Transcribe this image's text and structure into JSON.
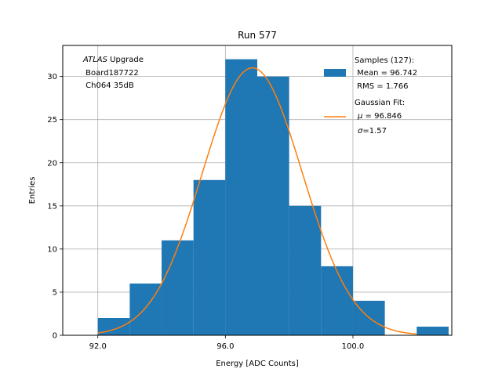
{
  "chart_data": {
    "type": "bar",
    "title": "Run 577",
    "xlabel": "Energy [ADC Counts]",
    "ylabel": "Entries",
    "xlim": [
      90.9,
      103.1
    ],
    "ylim": [
      0,
      33.6
    ],
    "grid": true,
    "xticks": [
      92.0,
      96.0,
      100.0
    ],
    "xtick_labels": [
      "92.0",
      "96.0",
      "100.0"
    ],
    "yticks": [
      0,
      5,
      10,
      15,
      20,
      25,
      30
    ],
    "ytick_labels": [
      "0",
      "5",
      "10",
      "15",
      "20",
      "25",
      "30"
    ],
    "bins": [
      {
        "x0": 92.0,
        "x1": 93.0,
        "count": 2
      },
      {
        "x0": 93.0,
        "x1": 94.0,
        "count": 6
      },
      {
        "x0": 94.0,
        "x1": 95.0,
        "count": 11
      },
      {
        "x0": 95.0,
        "x1": 96.0,
        "count": 18
      },
      {
        "x0": 96.0,
        "x1": 97.0,
        "count": 32
      },
      {
        "x0": 97.0,
        "x1": 98.0,
        "count": 30
      },
      {
        "x0": 98.0,
        "x1": 99.0,
        "count": 15
      },
      {
        "x0": 99.0,
        "x1": 100.0,
        "count": 8
      },
      {
        "x0": 100.0,
        "x1": 101.0,
        "count": 4
      },
      {
        "x0": 101.0,
        "x1": 102.0,
        "count": 0
      },
      {
        "x0": 102.0,
        "x1": 103.0,
        "count": 1
      }
    ],
    "fit": {
      "mu": 96.846,
      "sigma": 1.57,
      "amplitude": 31.0,
      "x_range": [
        92.0,
        102.0
      ]
    },
    "annotation": {
      "line1_italic": "ATLAS",
      "line1_rest": " Upgrade",
      "line2": " Board187722",
      "line3": " Ch064 35dB"
    },
    "legend": {
      "position": "top-right",
      "samples_label": "Samples (127):",
      "samples_mean": " Mean = 96.742",
      "samples_rms": " RMS = 1.766",
      "fit_label": "Gaussian Fit:",
      "fit_mu_symbol": "μ",
      "fit_mu_value": " = 96.846",
      "fit_sigma_symbol": "σ",
      "fit_sigma_value": "=1.57"
    },
    "colors": {
      "histogram": "#1f77b4",
      "fit": "#ff7f0e",
      "grid": "#b0b0b0"
    }
  }
}
